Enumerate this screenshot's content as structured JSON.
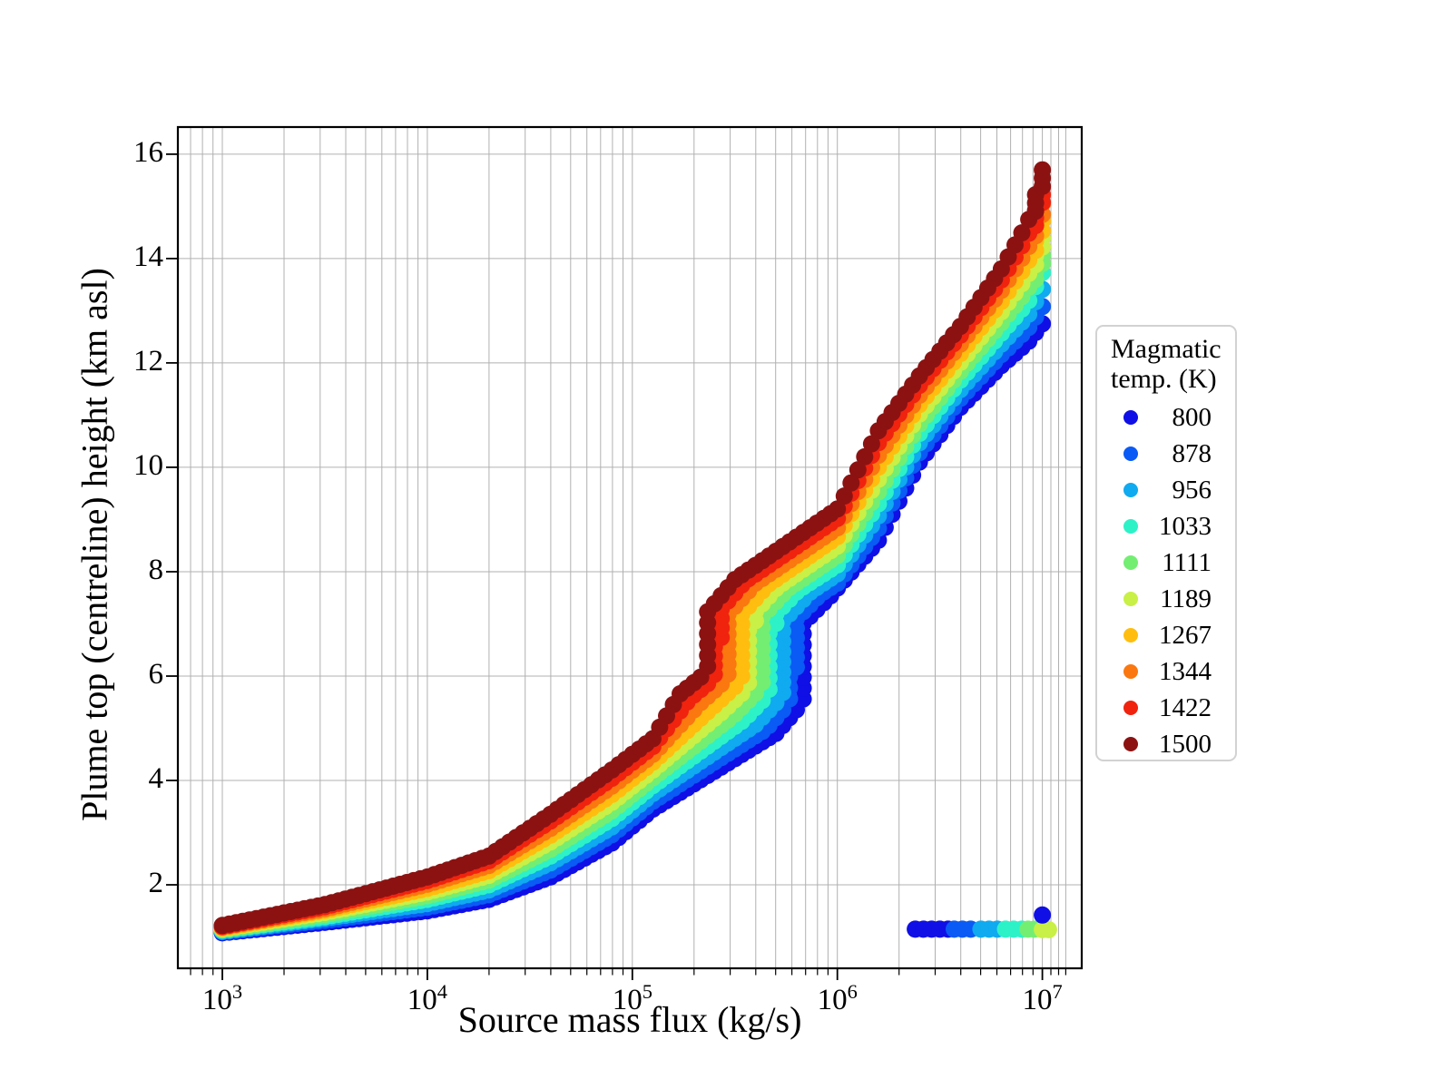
{
  "figure": {
    "background": "#ffffff",
    "spine_color": "#000000",
    "grid_color": "#b0b0b0",
    "tick_color": "#000000"
  },
  "legend": {
    "title_lines": [
      "Magmatic",
      "temp. (K)"
    ],
    "border_color": "#d2d2d2"
  },
  "chart_data": {
    "type": "scatter",
    "title": "",
    "xlabel": "Source mass flux (kg/s)",
    "ylabel": "Plume top (centreline) height (km asl)",
    "x_axis": {
      "scale": "log10",
      "range_log10": [
        2.783,
        7.192
      ],
      "major_tick_exponents": [
        3,
        4,
        5,
        6,
        7
      ],
      "minor_subs": [
        2,
        3,
        4,
        5,
        6,
        7,
        8,
        9
      ],
      "extra_minor_subs_last_decade": [
        1.1,
        1.2,
        1.3
      ],
      "grid": true
    },
    "y_axis": {
      "range": [
        0.4,
        16.52
      ],
      "ticks": [
        2,
        4,
        6,
        8,
        10,
        12,
        14,
        16
      ],
      "grid": true
    },
    "legend_position": "right",
    "marker_radius_px": 9.5,
    "series": [
      {
        "label": "800",
        "temperature_K": 800,
        "color": "#0f0fe6",
        "curve_log10x_y": [
          [
            3,
            1.08
          ],
          [
            3.5,
            1.28
          ],
          [
            4,
            1.5
          ],
          [
            4.3,
            1.72
          ],
          [
            4.6,
            2.15
          ],
          [
            4.9,
            2.8
          ],
          [
            5.1,
            3.45
          ],
          [
            5.7,
            4.9
          ],
          [
            5.81,
            5.4
          ],
          [
            5.83,
            7.0
          ],
          [
            5.97,
            7.55
          ],
          [
            6.2,
            8.6
          ],
          [
            6.4,
            10.1
          ],
          [
            6.6,
            11.15
          ],
          [
            6.8,
            11.95
          ],
          [
            6.93,
            12.4
          ],
          [
            7.0,
            12.75
          ]
        ],
        "collapsed_log10x_y": [
          [
            6.38,
            1.15
          ],
          [
            6.42,
            1.15
          ],
          [
            6.46,
            1.15
          ],
          [
            6.5,
            1.15
          ],
          [
            6.54,
            1.15
          ]
        ]
      },
      {
        "label": "878",
        "temperature_K": 878,
        "color": "#0a5af5",
        "curve_log10x_y": [
          [
            3,
            1.1
          ],
          [
            3.5,
            1.32
          ],
          [
            4,
            1.57
          ],
          [
            4.3,
            1.81
          ],
          [
            4.6,
            2.28
          ],
          [
            4.9,
            2.96
          ],
          [
            5.1,
            3.6
          ],
          [
            5.65,
            4.98
          ],
          [
            5.76,
            5.47
          ],
          [
            5.78,
            7.02
          ],
          [
            5.92,
            7.58
          ],
          [
            6.0,
            7.78
          ],
          [
            6.2,
            8.83
          ],
          [
            6.4,
            10.28
          ],
          [
            6.6,
            11.32
          ],
          [
            6.8,
            12.16
          ],
          [
            6.93,
            12.66
          ],
          [
            7.0,
            13.08
          ]
        ],
        "collapsed_log10x_y": [
          [
            6.57,
            1.15
          ],
          [
            6.61,
            1.15
          ],
          [
            6.65,
            1.15
          ]
        ]
      },
      {
        "label": "956",
        "temperature_K": 956,
        "color": "#0faaf0",
        "curve_log10x_y": [
          [
            3,
            1.11
          ],
          [
            3.5,
            1.36
          ],
          [
            4,
            1.64
          ],
          [
            4.3,
            1.9
          ],
          [
            4.6,
            2.42
          ],
          [
            4.9,
            3.11
          ],
          [
            5.1,
            3.75
          ],
          [
            5.6,
            5.07
          ],
          [
            5.71,
            5.53
          ],
          [
            5.73,
            7.04
          ],
          [
            5.87,
            7.62
          ],
          [
            6.0,
            7.96
          ],
          [
            6.2,
            9.07
          ],
          [
            6.4,
            10.47
          ],
          [
            6.6,
            11.49
          ],
          [
            6.8,
            12.36
          ],
          [
            6.93,
            12.91
          ],
          [
            7.0,
            13.41
          ]
        ],
        "collapsed_log10x_y": [
          [
            6.7,
            1.15
          ],
          [
            6.74,
            1.15
          ],
          [
            6.78,
            1.15
          ]
        ]
      },
      {
        "label": "1033",
        "temperature_K": 1033,
        "color": "#2df2c8",
        "curve_log10x_y": [
          [
            3,
            1.13
          ],
          [
            3.5,
            1.39
          ],
          [
            4,
            1.72
          ],
          [
            4.3,
            2.0
          ],
          [
            4.6,
            2.55
          ],
          [
            4.9,
            3.27
          ],
          [
            5.1,
            3.9
          ],
          [
            5.54,
            5.15
          ],
          [
            5.65,
            5.6
          ],
          [
            5.67,
            7.07
          ],
          [
            5.81,
            7.65
          ],
          [
            6.0,
            8.13
          ],
          [
            6.2,
            9.3
          ],
          [
            6.4,
            10.65
          ],
          [
            6.6,
            11.67
          ],
          [
            6.8,
            12.57
          ],
          [
            6.93,
            13.17
          ],
          [
            7.0,
            13.73
          ]
        ],
        "collapsed_log10x_y": [
          [
            6.82,
            1.15
          ],
          [
            6.86,
            1.15
          ],
          [
            6.9,
            1.15
          ]
        ]
      },
      {
        "label": "1111",
        "temperature_K": 1111,
        "color": "#73ee73",
        "curve_log10x_y": [
          [
            3,
            1.14
          ],
          [
            3.5,
            1.43
          ],
          [
            4,
            1.79
          ],
          [
            4.3,
            2.09
          ],
          [
            4.6,
            2.68
          ],
          [
            4.9,
            3.42
          ],
          [
            5.1,
            4.05
          ],
          [
            5.49,
            5.23
          ],
          [
            5.6,
            5.67
          ],
          [
            5.62,
            7.09
          ],
          [
            5.76,
            7.68
          ],
          [
            6.0,
            8.31
          ],
          [
            6.2,
            9.53
          ],
          [
            6.4,
            10.83
          ],
          [
            6.6,
            11.84
          ],
          [
            6.8,
            12.77
          ],
          [
            6.93,
            13.42
          ],
          [
            7.0,
            14.06
          ]
        ],
        "collapsed_log10x_y": [
          [
            6.93,
            1.15
          ],
          [
            6.96,
            1.15
          ]
        ]
      },
      {
        "label": "1189",
        "temperature_K": 1189,
        "color": "#c8f046",
        "curve_log10x_y": [
          [
            3,
            1.16
          ],
          [
            3.5,
            1.47
          ],
          [
            4,
            1.86
          ],
          [
            4.3,
            2.18
          ],
          [
            4.6,
            2.82
          ],
          [
            4.9,
            3.58
          ],
          [
            5.1,
            4.2
          ],
          [
            5.44,
            5.32
          ],
          [
            5.55,
            5.73
          ],
          [
            5.57,
            7.11
          ],
          [
            5.71,
            7.72
          ],
          [
            6.0,
            8.49
          ],
          [
            6.2,
            9.77
          ],
          [
            6.4,
            11.02
          ],
          [
            6.6,
            12.01
          ],
          [
            6.8,
            12.98
          ],
          [
            6.93,
            13.68
          ],
          [
            7.0,
            14.39
          ]
        ],
        "collapsed_log10x_y": [
          [
            7.0,
            1.14
          ],
          [
            7.03,
            1.14
          ]
        ]
      },
      {
        "label": "1267",
        "temperature_K": 1267,
        "color": "#ffbe0f",
        "curve_log10x_y": [
          [
            3,
            1.17
          ],
          [
            3.5,
            1.51
          ],
          [
            4,
            1.93
          ],
          [
            4.3,
            2.27
          ],
          [
            4.6,
            2.95
          ],
          [
            4.9,
            3.73
          ],
          [
            5.1,
            4.35
          ],
          [
            5.39,
            5.4
          ],
          [
            5.5,
            5.8
          ],
          [
            5.52,
            7.13
          ],
          [
            5.66,
            7.75
          ],
          [
            6.0,
            8.67
          ],
          [
            6.2,
            10.0
          ],
          [
            6.4,
            11.2
          ],
          [
            6.6,
            12.18
          ],
          [
            6.8,
            13.18
          ],
          [
            6.93,
            13.93
          ],
          [
            7.0,
            14.72
          ]
        ],
        "collapsed_log10x_y": []
      },
      {
        "label": "1344",
        "temperature_K": 1344,
        "color": "#fa780f",
        "curve_log10x_y": [
          [
            3,
            1.19
          ],
          [
            3.5,
            1.54
          ],
          [
            4,
            2.01
          ],
          [
            4.3,
            2.37
          ],
          [
            4.6,
            3.08
          ],
          [
            4.9,
            3.89
          ],
          [
            5.1,
            4.5
          ],
          [
            5.33,
            5.48
          ],
          [
            5.44,
            5.87
          ],
          [
            5.46,
            7.16
          ],
          [
            5.6,
            7.78
          ],
          [
            6.0,
            8.84
          ],
          [
            6.2,
            10.23
          ],
          [
            6.4,
            11.38
          ],
          [
            6.6,
            12.36
          ],
          [
            6.8,
            13.39
          ],
          [
            6.93,
            14.19
          ],
          [
            7.0,
            15.05
          ]
        ],
        "collapsed_log10x_y": []
      },
      {
        "label": "1422",
        "temperature_K": 1422,
        "color": "#f0230f",
        "curve_log10x_y": [
          [
            3,
            1.2
          ],
          [
            3.5,
            1.58
          ],
          [
            4,
            2.08
          ],
          [
            4.3,
            2.46
          ],
          [
            4.6,
            3.22
          ],
          [
            4.9,
            4.04
          ],
          [
            5.1,
            4.65
          ],
          [
            5.28,
            5.57
          ],
          [
            5.39,
            5.93
          ],
          [
            5.41,
            7.18
          ],
          [
            5.55,
            7.82
          ],
          [
            6.0,
            9.02
          ],
          [
            6.2,
            10.47
          ],
          [
            6.4,
            11.57
          ],
          [
            6.6,
            12.53
          ],
          [
            6.8,
            13.59
          ],
          [
            6.93,
            14.44
          ],
          [
            7.0,
            15.37
          ]
        ],
        "collapsed_log10x_y": []
      },
      {
        "label": "1500",
        "temperature_K": 1500,
        "color": "#8c1212",
        "curve_log10x_y": [
          [
            3,
            1.22
          ],
          [
            3.5,
            1.62
          ],
          [
            4,
            2.15
          ],
          [
            4.3,
            2.55
          ],
          [
            4.6,
            3.35
          ],
          [
            4.9,
            4.2
          ],
          [
            5.1,
            4.8
          ],
          [
            5.23,
            5.65
          ],
          [
            5.34,
            6.0
          ],
          [
            5.36,
            7.2
          ],
          [
            5.5,
            7.85
          ],
          [
            6.0,
            9.2
          ],
          [
            6.2,
            10.7
          ],
          [
            6.4,
            11.75
          ],
          [
            6.6,
            12.7
          ],
          [
            6.8,
            13.8
          ],
          [
            6.93,
            14.7
          ],
          [
            7.0,
            15.7
          ]
        ],
        "collapsed_log10x_y": []
      }
    ],
    "outlier_points": [
      {
        "series_label": "800",
        "color": "#0f0fe6",
        "log10x": 7.0,
        "y": 1.42
      }
    ]
  }
}
